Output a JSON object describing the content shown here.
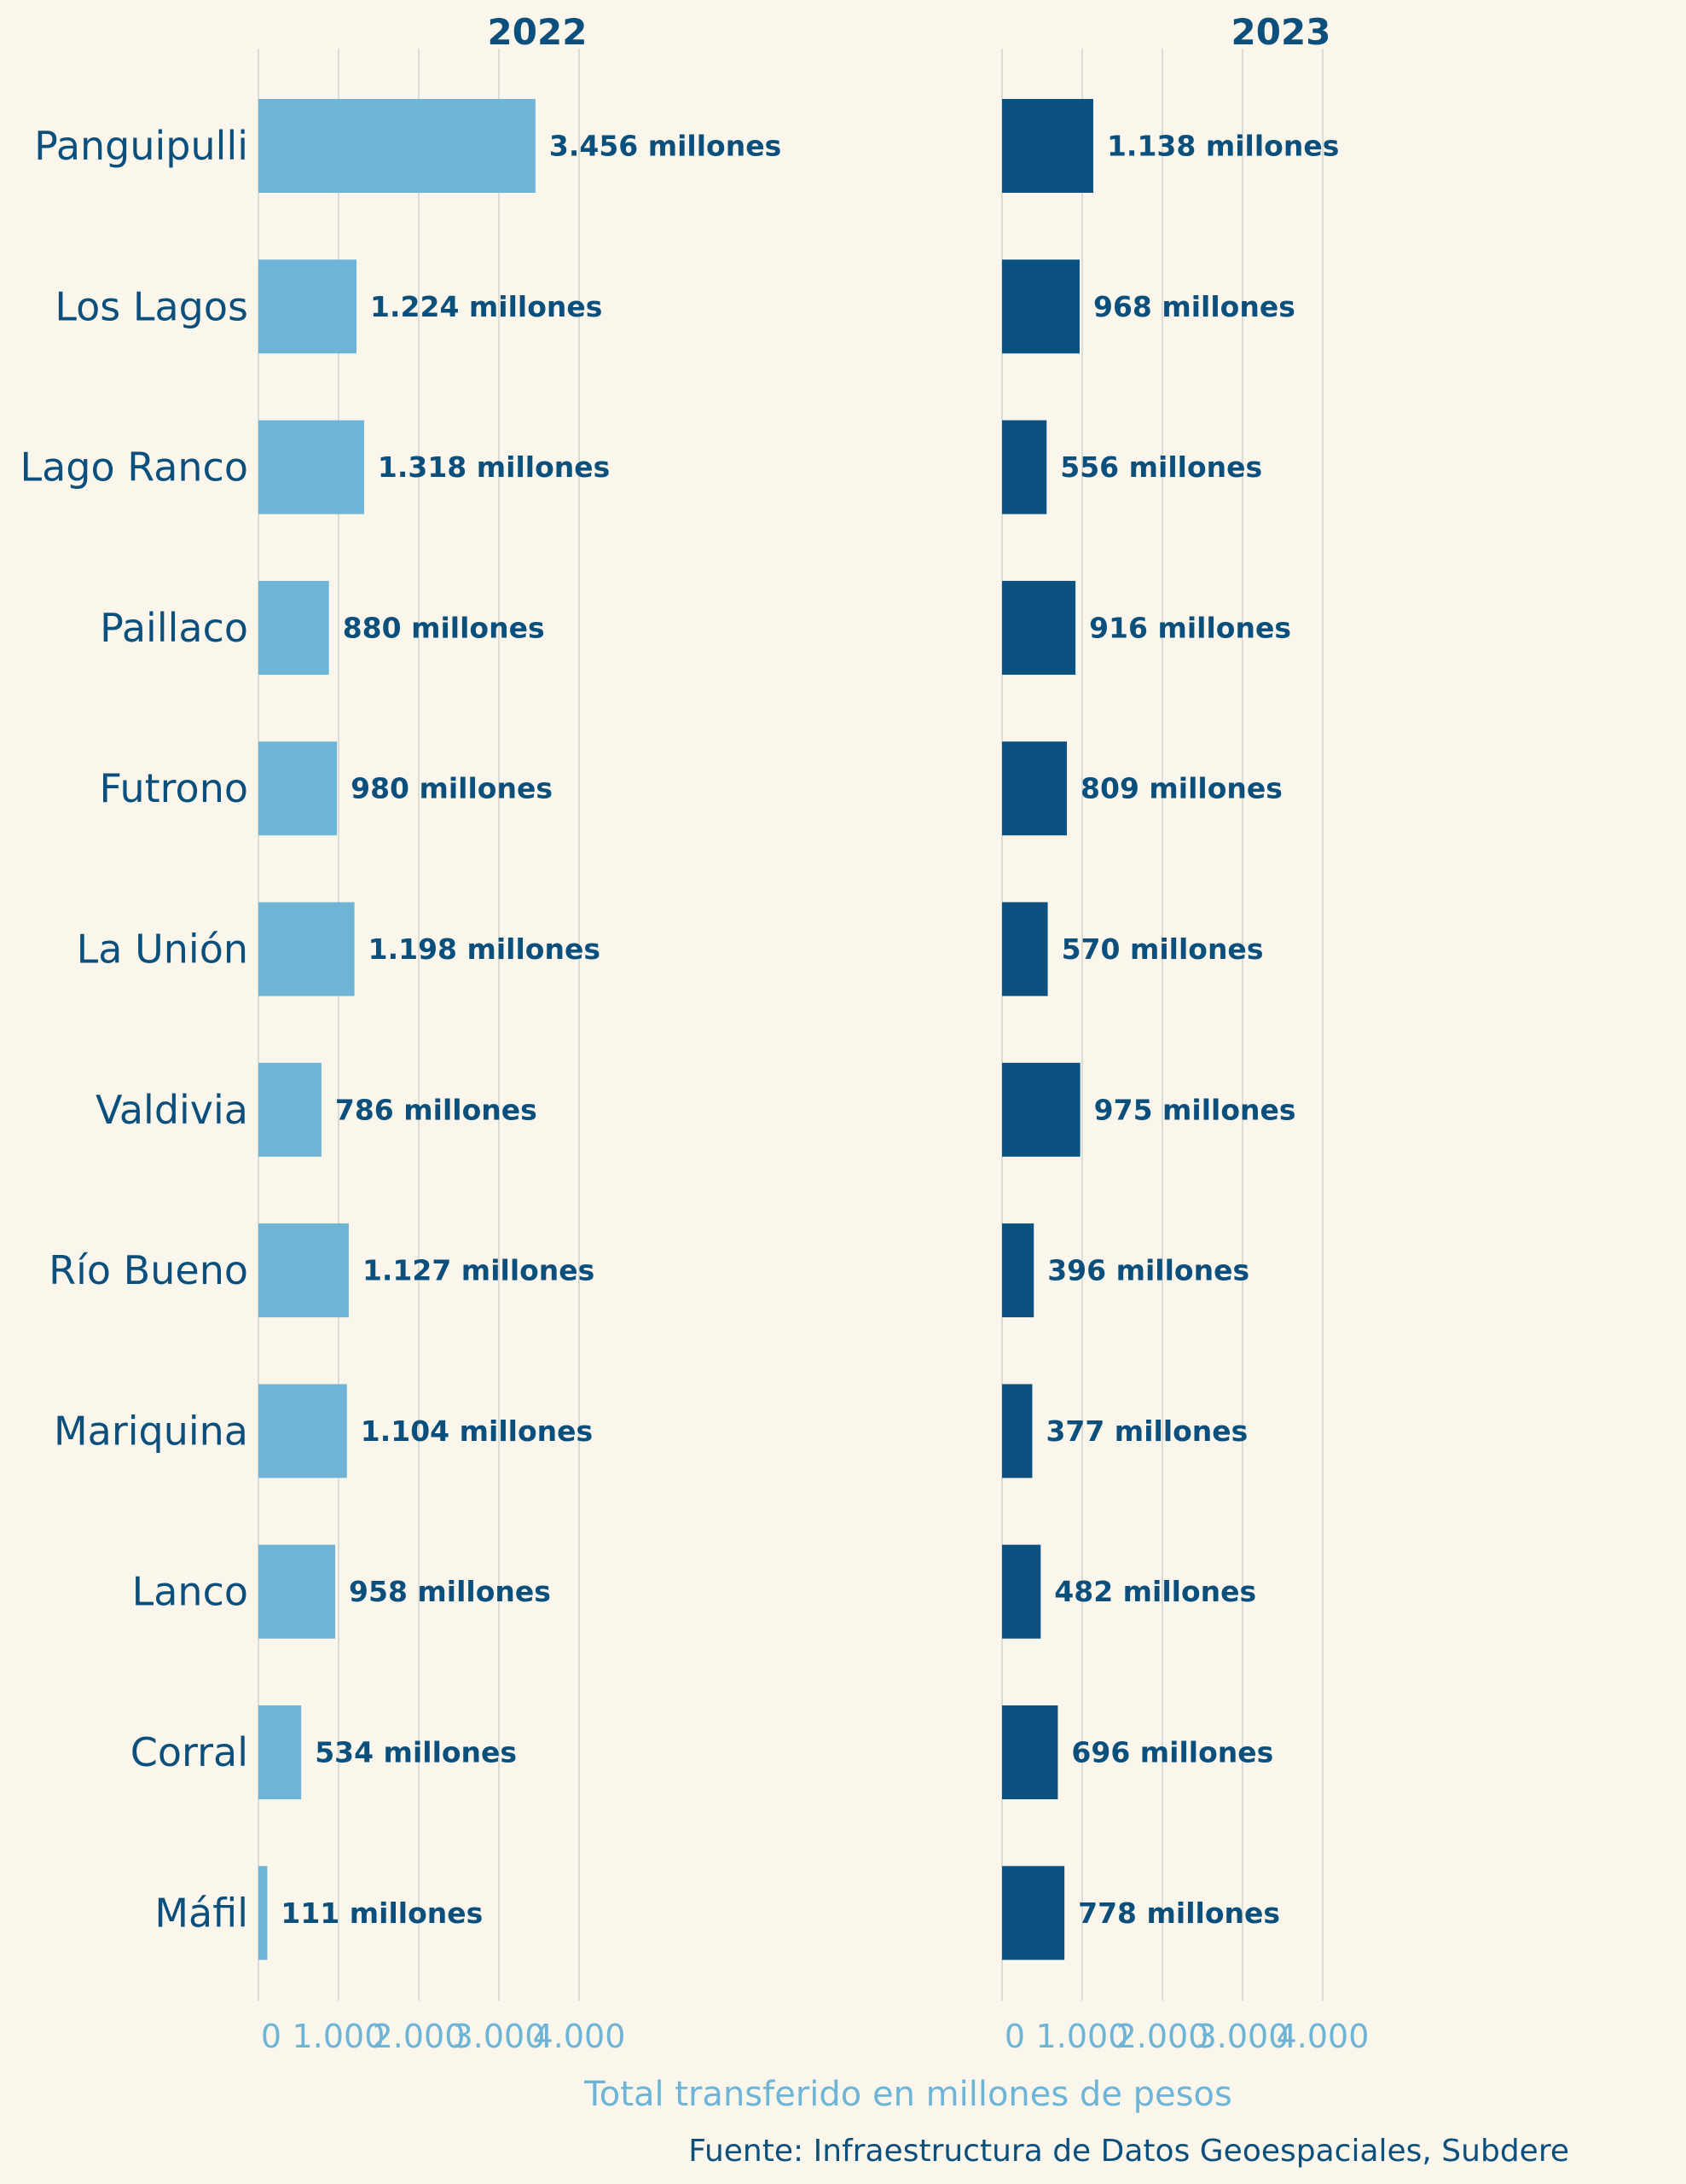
{
  "chart_data": {
    "type": "bar",
    "orientation": "horizontal",
    "categories": [
      "Panguipulli",
      "Los Lagos",
      "Lago Ranco",
      "Paillaco",
      "Futrono",
      "La Unión",
      "Valdivia",
      "Río Bueno",
      "Mariquina",
      "Lanco",
      "Corral",
      "Máfil"
    ],
    "series": [
      {
        "name": "2022",
        "color": "#6db4d6",
        "values": [
          3456,
          1224,
          1318,
          880,
          980,
          1198,
          786,
          1127,
          1104,
          958,
          534,
          111
        ],
        "labels": [
          "3.456 millones",
          "1.224 millones",
          "1.318 millones",
          "880 millones",
          "980 millones",
          "1.198 millones",
          "786 millones",
          "1.127 millones",
          "1.104 millones",
          "958 millones",
          "534 millones",
          "111 millones"
        ]
      },
      {
        "name": "2023",
        "color": "#0b5280",
        "values": [
          1138,
          968,
          556,
          916,
          809,
          570,
          975,
          396,
          377,
          482,
          696,
          778
        ],
        "labels": [
          "1.138 millones",
          "968 millones",
          "556 millones",
          "916 millones",
          "809 millones",
          "570 millones",
          "975 millones",
          "396 millones",
          "377 millones",
          "482 millones",
          "696 millones",
          "778 millones"
        ]
      }
    ],
    "xlim": [
      0,
      4000
    ],
    "xticks": [
      0,
      1000,
      2000,
      3000,
      4000
    ],
    "xtick_labels": [
      "0",
      "1.000",
      "2.000",
      "3.000",
      "4.000"
    ],
    "xlabel": "Total transferido en millones de pesos",
    "ylabel": "",
    "grid": "vertical",
    "legend": "none",
    "source": "Fuente: Infraestructura de Datos Geoespaciales, Subdere"
  }
}
